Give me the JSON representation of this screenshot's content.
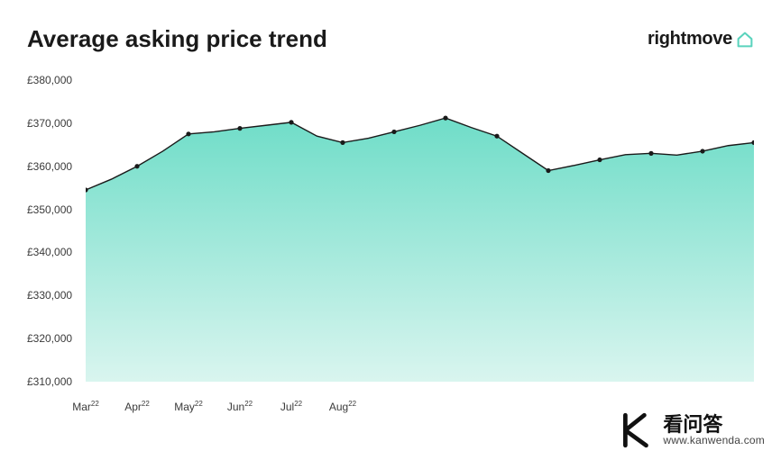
{
  "header": {
    "title": "Average asking price trend",
    "brand": "rightmove",
    "brand_icon_color": "#5ad3bd"
  },
  "chart": {
    "type": "area",
    "background_color": "#ffffff",
    "title_fontsize": 26,
    "label_fontsize": 12,
    "text_color": "#3a3a3a",
    "ylim": [
      310000,
      380000
    ],
    "ytick_step": 10000,
    "yticks": [
      310000,
      320000,
      330000,
      340000,
      350000,
      360000,
      370000,
      380000
    ],
    "ytick_labels": [
      "£310,000",
      "£320,000",
      "£330,000",
      "£340,000",
      "£350,000",
      "£360,000",
      "£370,000",
      "£380,000"
    ],
    "x_labels": [
      {
        "month": "Mar",
        "year": "22"
      },
      {
        "month": "Apr",
        "year": "22"
      },
      {
        "month": "May",
        "year": "22"
      },
      {
        "month": "Jun",
        "year": "22"
      },
      {
        "month": "Jul",
        "year": "22"
      },
      {
        "month": "Aug",
        "year": "22"
      }
    ],
    "x_label_index": [
      0,
      2,
      4,
      6,
      8,
      10
    ],
    "values": [
      354500,
      357000,
      360000,
      363500,
      367500,
      368000,
      368800,
      369500,
      370200,
      367000,
      365500,
      366500,
      368000,
      369500,
      371200,
      369000,
      367000,
      363000,
      359000,
      360200,
      361500,
      362700,
      363000,
      362600,
      363500,
      364800,
      365500
    ],
    "marker_index": [
      0,
      2,
      4,
      6,
      8,
      10,
      12,
      14,
      16,
      18,
      20,
      22,
      24,
      26
    ],
    "fill_top_color": "#6fddc8",
    "fill_bottom_color": "#d9f5ef",
    "line_color": "#1a1a1a",
    "line_width": 1.4,
    "marker_color": "#1a1a1a",
    "marker_radius": 2.6
  },
  "watermark": {
    "cn": "看问答",
    "url": "www.kanwenda.com",
    "logo_color": "#111111"
  }
}
